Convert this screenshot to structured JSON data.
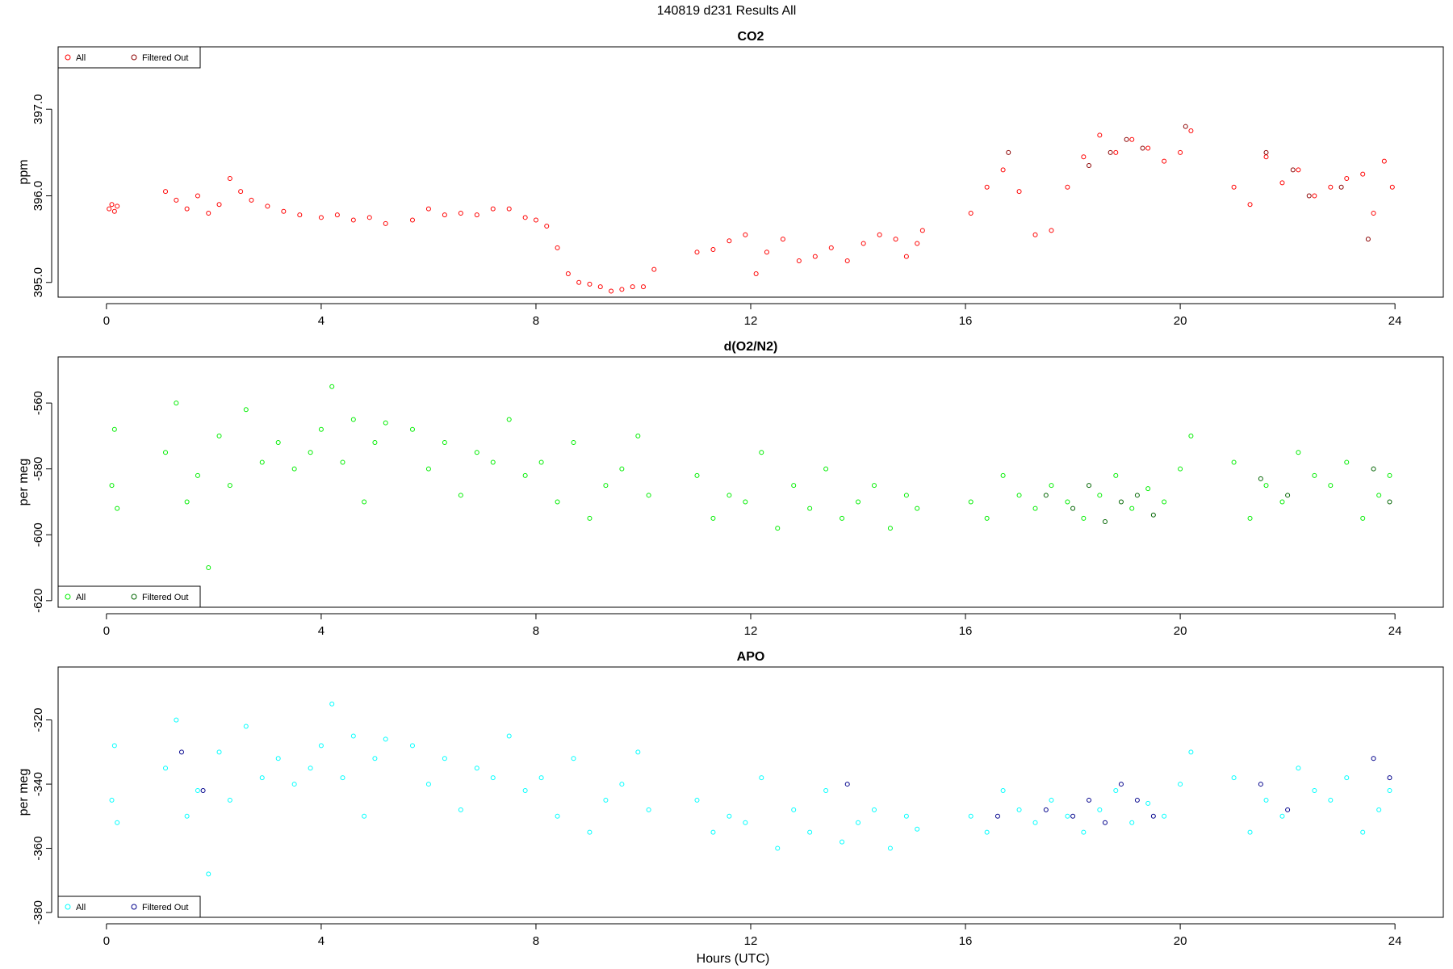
{
  "figure": {
    "title": "140819   d231   Results All",
    "xlabel": "Hours (UTC)"
  },
  "chart_data": [
    {
      "type": "scatter",
      "title": "CO2",
      "xlabel": "",
      "ylabel": "ppm",
      "xlim": [
        -0.9,
        24.9
      ],
      "ylim": [
        394.83,
        397.72
      ],
      "xticks": [
        0,
        4,
        8,
        12,
        16,
        20,
        24
      ],
      "yticks": [
        395.0,
        396.0,
        397.0
      ],
      "ytick_labels": [
        "395.0",
        "396.0",
        "397.0"
      ],
      "grid": false,
      "legend": {
        "placement": "top-left",
        "entries": [
          {
            "label": "All",
            "color": "#ff0000"
          },
          {
            "label": "Filtered Out",
            "color": "#8b0000"
          }
        ]
      },
      "series": [
        {
          "name": "All",
          "color": "#ff0000",
          "x": [
            0.05,
            0.1,
            0.15,
            0.2,
            1.1,
            1.3,
            1.5,
            1.7,
            1.9,
            2.1,
            2.3,
            2.5,
            2.7,
            3.0,
            3.3,
            3.6,
            4.0,
            4.3,
            4.6,
            4.9,
            5.2,
            5.7,
            6.0,
            6.3,
            6.6,
            6.9,
            7.2,
            7.5,
            7.8,
            8.0,
            8.2,
            8.4,
            8.6,
            8.8,
            9.0,
            9.2,
            9.4,
            9.6,
            9.8,
            10.0,
            10.2,
            11.0,
            11.3,
            11.6,
            11.9,
            12.1,
            12.3,
            12.6,
            12.9,
            13.2,
            13.5,
            13.8,
            14.1,
            14.4,
            14.7,
            14.9,
            15.1,
            15.2,
            16.1,
            16.4,
            16.7,
            17.0,
            17.3,
            17.6,
            17.9,
            18.2,
            18.5,
            18.8,
            19.1,
            19.4,
            19.7,
            20.0,
            20.2,
            21.0,
            21.3,
            21.6,
            21.9,
            22.2,
            22.5,
            22.8,
            23.1,
            23.4,
            23.6,
            23.8,
            23.95
          ],
          "y": [
            395.85,
            395.9,
            395.82,
            395.88,
            396.05,
            395.95,
            395.85,
            396.0,
            395.8,
            395.9,
            396.2,
            396.05,
            395.95,
            395.88,
            395.82,
            395.78,
            395.75,
            395.78,
            395.72,
            395.75,
            395.68,
            395.72,
            395.85,
            395.78,
            395.8,
            395.78,
            395.85,
            395.85,
            395.75,
            395.72,
            395.65,
            395.4,
            395.1,
            395.0,
            394.98,
            394.95,
            394.9,
            394.92,
            394.95,
            394.95,
            395.15,
            395.35,
            395.38,
            395.48,
            395.55,
            395.1,
            395.35,
            395.5,
            395.25,
            395.3,
            395.4,
            395.25,
            395.45,
            395.55,
            395.5,
            395.3,
            395.45,
            395.6,
            395.8,
            396.1,
            396.3,
            396.05,
            395.55,
            395.6,
            396.1,
            396.45,
            396.7,
            396.5,
            396.65,
            396.55,
            396.4,
            396.5,
            396.75,
            396.1,
            395.9,
            396.45,
            396.15,
            396.3,
            396.0,
            396.1,
            396.2,
            396.25,
            395.8,
            396.4,
            396.1
          ]
        },
        {
          "name": "Filtered Out",
          "color": "#8b0000",
          "x": [
            16.8,
            18.3,
            18.7,
            19.0,
            19.3,
            20.1,
            21.6,
            22.1,
            22.4,
            23.0,
            23.5
          ],
          "y": [
            396.5,
            396.35,
            396.5,
            396.65,
            396.55,
            396.8,
            396.5,
            396.3,
            396.0,
            396.1,
            395.5
          ]
        }
      ]
    },
    {
      "type": "scatter",
      "title": "d(O2/N2)",
      "xlabel": "",
      "ylabel": "per meg",
      "xlim": [
        -0.9,
        24.9
      ],
      "ylim": [
        -622.0,
        -546.0
      ],
      "xticks": [
        0,
        4,
        8,
        12,
        16,
        20,
        24
      ],
      "yticks": [
        -620,
        -600,
        -580,
        -560
      ],
      "ytick_labels": [
        "-620",
        "-600",
        "-580",
        "-560"
      ],
      "grid": false,
      "legend": {
        "placement": "bottom-left",
        "entries": [
          {
            "label": "All",
            "color": "#00ee00"
          },
          {
            "label": "Filtered Out",
            "color": "#006400"
          }
        ]
      },
      "series": [
        {
          "name": "All",
          "color": "#00ee00",
          "x": [
            0.1,
            0.15,
            0.2,
            1.1,
            1.3,
            1.5,
            1.7,
            1.9,
            2.1,
            2.3,
            2.6,
            2.9,
            3.2,
            3.5,
            3.8,
            4.0,
            4.2,
            4.4,
            4.6,
            4.8,
            5.0,
            5.2,
            5.7,
            6.0,
            6.3,
            6.6,
            6.9,
            7.2,
            7.5,
            7.8,
            8.1,
            8.4,
            8.7,
            9.0,
            9.3,
            9.6,
            9.9,
            10.1,
            11.0,
            11.3,
            11.6,
            11.9,
            12.2,
            12.5,
            12.8,
            13.1,
            13.4,
            13.7,
            14.0,
            14.3,
            14.6,
            14.9,
            15.1,
            16.1,
            16.4,
            16.7,
            17.0,
            17.3,
            17.6,
            17.9,
            18.2,
            18.5,
            18.8,
            19.1,
            19.4,
            19.7,
            20.0,
            20.2,
            21.0,
            21.3,
            21.6,
            21.9,
            22.2,
            22.5,
            22.8,
            23.1,
            23.4,
            23.7,
            23.9
          ],
          "y": [
            -585,
            -568,
            -592,
            -575,
            -560,
            -590,
            -582,
            -610,
            -570,
            -585,
            -562,
            -578,
            -572,
            -580,
            -575,
            -568,
            -555,
            -578,
            -565,
            -590,
            -572,
            -566,
            -568,
            -580,
            -572,
            -588,
            -575,
            -578,
            -565,
            -582,
            -578,
            -590,
            -572,
            -595,
            -585,
            -580,
            -570,
            -588,
            -582,
            -595,
            -588,
            -590,
            -575,
            -598,
            -585,
            -592,
            -580,
            -595,
            -590,
            -585,
            -598,
            -588,
            -592,
            -590,
            -595,
            -582,
            -588,
            -592,
            -585,
            -590,
            -595,
            -588,
            -582,
            -592,
            -586,
            -590,
            -580,
            -570,
            -578,
            -595,
            -585,
            -590,
            -575,
            -582,
            -585,
            -578,
            -595,
            -588,
            -582
          ]
        },
        {
          "name": "Filtered Out",
          "color": "#006400",
          "x": [
            17.5,
            18.0,
            18.3,
            18.6,
            18.9,
            19.2,
            19.5,
            21.5,
            22.0,
            23.6,
            23.9
          ],
          "y": [
            -588,
            -592,
            -585,
            -596,
            -590,
            -588,
            -594,
            -583,
            -588,
            -580,
            -590
          ]
        }
      ]
    },
    {
      "type": "scatter",
      "title": "APO",
      "xlabel": "",
      "ylabel": "per meg",
      "xlim": [
        -0.9,
        24.9
      ],
      "ylim": [
        -381.5,
        -303.5
      ],
      "xticks": [
        0,
        4,
        8,
        12,
        16,
        20,
        24
      ],
      "yticks": [
        -380,
        -360,
        -340,
        -320
      ],
      "ytick_labels": [
        "-380",
        "-360",
        "-340",
        "-320"
      ],
      "grid": false,
      "legend": {
        "placement": "bottom-left",
        "entries": [
          {
            "label": "All",
            "color": "#00ffff"
          },
          {
            "label": "Filtered Out",
            "color": "#00008b"
          }
        ]
      },
      "series": [
        {
          "name": "All",
          "color": "#00ffff",
          "x": [
            0.1,
            0.15,
            0.2,
            1.1,
            1.3,
            1.5,
            1.7,
            1.9,
            2.1,
            2.3,
            2.6,
            2.9,
            3.2,
            3.5,
            3.8,
            4.0,
            4.2,
            4.4,
            4.6,
            4.8,
            5.0,
            5.2,
            5.7,
            6.0,
            6.3,
            6.6,
            6.9,
            7.2,
            7.5,
            7.8,
            8.1,
            8.4,
            8.7,
            9.0,
            9.3,
            9.6,
            9.9,
            10.1,
            11.0,
            11.3,
            11.6,
            11.9,
            12.2,
            12.5,
            12.8,
            13.1,
            13.4,
            13.7,
            14.0,
            14.3,
            14.6,
            14.9,
            15.1,
            16.1,
            16.4,
            16.7,
            17.0,
            17.3,
            17.6,
            17.9,
            18.2,
            18.5,
            18.8,
            19.1,
            19.4,
            19.7,
            20.0,
            20.2,
            21.0,
            21.3,
            21.6,
            21.9,
            22.2,
            22.5,
            22.8,
            23.1,
            23.4,
            23.7,
            23.9
          ],
          "y": [
            -345,
            -328,
            -352,
            -335,
            -320,
            -350,
            -342,
            -368,
            -330,
            -345,
            -322,
            -338,
            -332,
            -340,
            -335,
            -328,
            -315,
            -338,
            -325,
            -350,
            -332,
            -326,
            -328,
            -340,
            -332,
            -348,
            -335,
            -338,
            -325,
            -342,
            -338,
            -350,
            -332,
            -355,
            -345,
            -340,
            -330,
            -348,
            -345,
            -355,
            -350,
            -352,
            -338,
            -360,
            -348,
            -355,
            -342,
            -358,
            -352,
            -348,
            -360,
            -350,
            -354,
            -350,
            -355,
            -342,
            -348,
            -352,
            -345,
            -350,
            -355,
            -348,
            -342,
            -352,
            -346,
            -350,
            -340,
            -330,
            -338,
            -355,
            -345,
            -350,
            -335,
            -342,
            -345,
            -338,
            -355,
            -348,
            -342
          ]
        },
        {
          "name": "Filtered Out",
          "color": "#00008b",
          "x": [
            1.4,
            1.8,
            13.8,
            16.6,
            17.5,
            18.0,
            18.3,
            18.6,
            18.9,
            19.2,
            19.5,
            21.5,
            22.0,
            23.6,
            23.9
          ],
          "y": [
            -330,
            -342,
            -340,
            -350,
            -348,
            -350,
            -345,
            -352,
            -340,
            -345,
            -350,
            -340,
            -348,
            -332,
            -338
          ]
        }
      ]
    }
  ]
}
